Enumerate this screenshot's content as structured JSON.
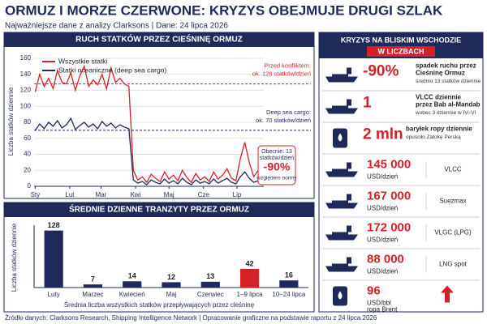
{
  "header": {
    "title": "ORMUZ I MORZE CZERWONE: KRYZYS OBEJMUJE DRUGI SZLAK",
    "subtitle": "Najważniejsze dane z analizy Clarksons  |  Dane: 24 lipca 2026"
  },
  "chart_data": [
    {
      "type": "line",
      "title": "RUCH STATKÓW PRZEZ CIEŚNINĘ ORMUZ",
      "ylabel": "Liczba statków dziennie",
      "x": [
        1,
        5,
        9,
        13,
        17,
        21,
        25,
        29,
        33,
        37,
        41,
        45,
        49,
        53,
        57,
        61,
        65,
        69,
        73,
        77,
        81,
        85,
        89,
        93,
        97,
        101,
        105,
        109,
        113,
        117,
        121,
        125,
        129,
        133,
        137,
        141,
        145,
        149,
        153,
        157,
        161,
        165,
        169,
        173,
        177,
        181,
        185,
        189,
        193,
        197,
        201,
        205
      ],
      "series": [
        {
          "name": "Wszystkie statki",
          "color": "#d62027",
          "values": [
            118,
            140,
            125,
            135,
            122,
            145,
            130,
            128,
            142,
            120,
            138,
            150,
            125,
            133,
            127,
            140,
            122,
            148,
            130,
            135,
            128,
            125,
            20,
            8,
            12,
            5,
            15,
            10,
            6,
            18,
            9,
            14,
            7,
            20,
            11,
            5,
            16,
            8,
            12,
            6,
            18,
            9,
            14,
            22,
            10,
            7,
            35,
            55,
            30,
            12,
            20,
            13
          ]
        },
        {
          "name": "Statki oceaniczne (deep sea cargo)",
          "color": "#1f2a5a",
          "values": [
            70,
            78,
            72,
            80,
            75,
            82,
            73,
            77,
            85,
            71,
            76,
            80,
            74,
            78,
            72,
            81,
            75,
            79,
            73,
            77,
            74,
            72,
            8,
            4,
            6,
            2,
            8,
            5,
            3,
            9,
            4,
            7,
            3,
            10,
            5,
            2,
            8,
            4,
            6,
            3,
            9,
            4,
            7,
            10,
            5,
            3,
            12,
            18,
            10,
            5,
            7,
            4
          ]
        }
      ],
      "xlim": [
        0,
        206
      ],
      "xticks": [
        {
          "value": 1,
          "label": "Sty"
        },
        {
          "value": 32,
          "label": "Lut"
        },
        {
          "value": 60,
          "label": "Mar"
        },
        {
          "value": 91,
          "label": "Kwi"
        },
        {
          "value": 121,
          "label": "Maj"
        },
        {
          "value": 152,
          "label": "Cze"
        },
        {
          "value": 182,
          "label": "Lip"
        }
      ],
      "ylim": [
        0,
        160
      ],
      "yticks": [
        0,
        20,
        40,
        60,
        80,
        100,
        120,
        140,
        160
      ],
      "grid": true,
      "reference_lines": [
        {
          "value": 128,
          "color": "#d62027",
          "label": [
            "Przed konfliktem:",
            "ok. 128 statków/dzień"
          ]
        },
        {
          "value": 70,
          "color": "#1f2a5a",
          "label": [
            "Deep sea cargo:",
            "ok. 70 statków/dzień"
          ]
        }
      ],
      "callout": {
        "lines": [
          "Obecnie: 13",
          "statków/dzień"
        ],
        "big": "-90%",
        "note": "względem normy"
      }
    },
    {
      "type": "bar",
      "title": "ŚREDNIE DZIENNE TRANZYTY PRZEZ ORMUZ",
      "ylabel": "Liczba statków dziennie",
      "xlabel": "Średnia liczba wszystkich statków przepływających przez cieśninę",
      "categories": [
        "Luty",
        "Marzec",
        "Kwiecień",
        "Maj",
        "Czerwiec",
        "1–9 lipca",
        "10–24 lipca"
      ],
      "values": [
        128,
        7,
        14,
        12,
        13,
        42,
        16
      ],
      "colors": [
        "#1f2a5a",
        "#1f2a5a",
        "#1f2a5a",
        "#1f2a5a",
        "#1f2a5a",
        "#d62027",
        "#1f2a5a"
      ],
      "ylim": [
        0,
        140
      ]
    }
  ],
  "panel": {
    "title": "KRYZYS NA BLISKIM WSCHODZIE",
    "subtitle": "W LICZBACH",
    "items": [
      {
        "value": "-90%",
        "text": [
          "spadek ruchu przez",
          "Cieśninę Ormuz"
        ],
        "note": "średnio 13 statków dziennie"
      },
      {
        "value": "1",
        "text": [
          "VLCC dziennie",
          "przez Bab al-Mandab"
        ],
        "note": "wobec 3 dziennie w IV–VI"
      },
      {
        "value": "2 mln",
        "text": [
          "baryłek ropy dziennie"
        ],
        "note": "opuściło Zatokę Perską"
      },
      {
        "value": "145 000",
        "unit": "USD/dzień",
        "label": "VLCC"
      },
      {
        "value": "167 000",
        "unit": "USD/dzień",
        "label": "Suezmax"
      },
      {
        "value": "172 000",
        "unit": "USD/dzień",
        "label": "VLGC (LPG)"
      },
      {
        "value": "88 000",
        "unit": "USD/dzień",
        "label": "LNG spot"
      },
      {
        "value": "96",
        "unit": "USD/bbl",
        "label": "ropa Brent"
      }
    ]
  },
  "footer": "Źródło danych: Clarksons Research, Shipping Intelligence Network  |  Opracowanie graficzne na podstawie raportu z 24 lipca 2026"
}
